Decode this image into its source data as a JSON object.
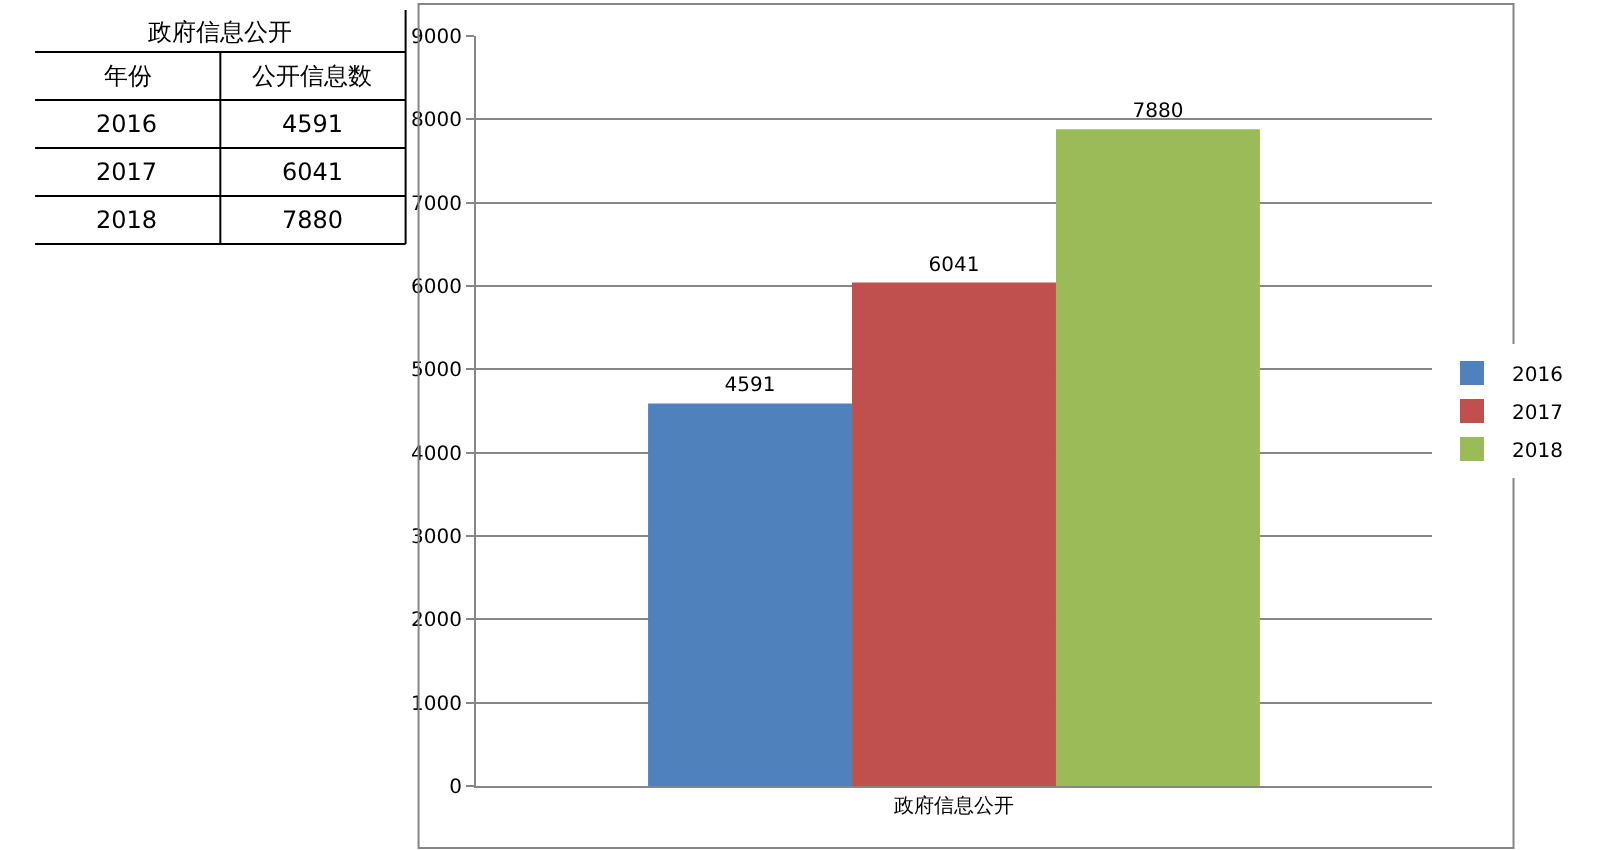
{
  "chart_data": [
    {
      "type": "other",
      "title": "政府信息公开",
      "annotations": [
        "年份",
        "公开信息数",
        "2016",
        "4591",
        "2017",
        "6041",
        "2018",
        "7880"
      ]
    },
    {
      "type": "bar",
      "categories": [
        "政府信息公开"
      ],
      "series": [
        {
          "name": "2016",
          "color": "#4f81bd",
          "values": [
            4591
          ]
        },
        {
          "name": "2017",
          "color": "#c0504d",
          "values": [
            6041
          ]
        },
        {
          "name": "2018",
          "color": "#9bbb59",
          "values": [
            7880
          ]
        }
      ],
      "data_labels": true,
      "ylim": [
        0,
        9000
      ],
      "yticks": [
        0,
        1000,
        2000,
        3000,
        4000,
        5000,
        6000,
        7000,
        8000,
        9000
      ],
      "grid": "y",
      "legend": "right"
    }
  ]
}
